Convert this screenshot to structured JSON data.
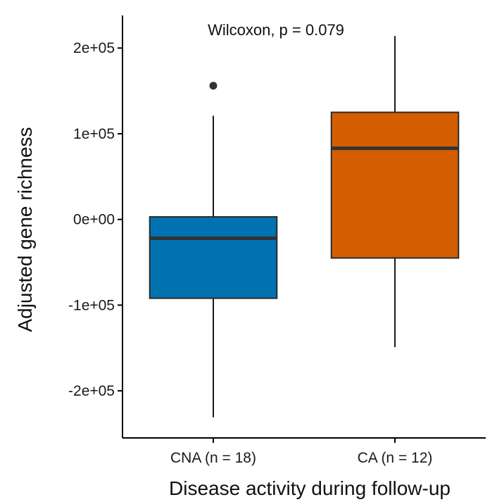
{
  "chart_data": {
    "type": "boxplot",
    "xlabel": "Disease activity during follow-up",
    "ylabel": "Adjusted gene richness",
    "annotation": "Wilcoxon, p = 0.079",
    "ylim": [
      -255000,
      238000
    ],
    "y_ticks": [
      -200000,
      -100000,
      0,
      100000,
      200000
    ],
    "y_tick_labels": [
      "-2e+05",
      "-1e+05",
      "0e+00",
      "1e+05",
      "2e+05"
    ],
    "categories": [
      "CNA (n = 18)",
      "CA (n = 12)"
    ],
    "boxes": [
      {
        "category": "CNA (n = 18)",
        "whisker_low": -231000,
        "q1": -92000,
        "median": -22000,
        "q3": 3000,
        "whisker_high": 121000,
        "outliers": [
          156000
        ],
        "color": "#0072B2"
      },
      {
        "category": "CA (n = 12)",
        "whisker_low": -149000,
        "q1": -45000,
        "median": 83000,
        "q3": 125000,
        "whisker_high": 214000,
        "outliers": [],
        "color": "#D55E00"
      }
    ],
    "grid": false,
    "legend": "none"
  }
}
